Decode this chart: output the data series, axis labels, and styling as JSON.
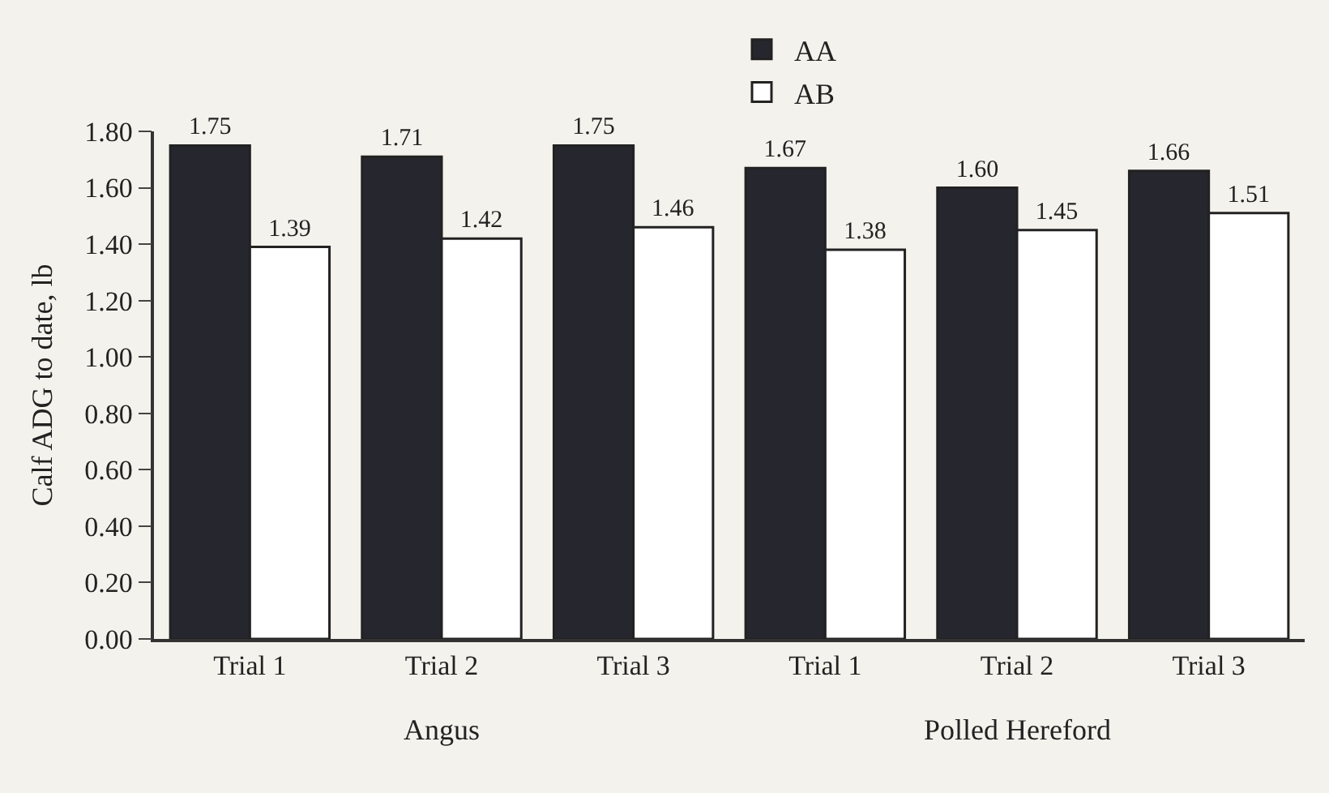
{
  "chart_data": {
    "type": "bar",
    "ylabel": "Calf ADG to date, lb",
    "categories": [
      "Trial 1",
      "Trial 2",
      "Trial 3",
      "Trial 1",
      "Trial 2",
      "Trial 3"
    ],
    "series": [
      {
        "name": "AA",
        "color": "#26262e",
        "values": [
          1.75,
          1.71,
          1.75,
          1.67,
          1.6,
          1.66
        ],
        "value_labels": [
          "1.75",
          "1.71",
          "1.75",
          "1.67",
          "1.60",
          "1.66"
        ]
      },
      {
        "name": "AB",
        "color": "#ffffff",
        "values": [
          1.39,
          1.42,
          1.46,
          1.38,
          1.45,
          1.51
        ],
        "value_labels": [
          "1.39",
          "1.42",
          "1.46",
          "1.38",
          "1.45",
          "1.51"
        ]
      }
    ],
    "ylim": [
      0,
      1.8
    ],
    "yticks": [
      {
        "value": 0,
        "label": "0.00"
      },
      {
        "value": 0.2,
        "label": "0.20"
      },
      {
        "value": 0.4,
        "label": "0.40"
      },
      {
        "value": 0.6,
        "label": "0.60"
      },
      {
        "value": 0.8,
        "label": "0.80"
      },
      {
        "value": 1.0,
        "label": "1.00"
      },
      {
        "value": 1.2,
        "label": "1.20"
      },
      {
        "value": 1.4,
        "label": "1.40"
      },
      {
        "value": 1.6,
        "label": "1.60"
      },
      {
        "value": 1.8,
        "label": "1.80"
      }
    ],
    "annotations": [
      "Angus",
      "Polled Hereford"
    ],
    "grid": false,
    "legend": "top"
  }
}
